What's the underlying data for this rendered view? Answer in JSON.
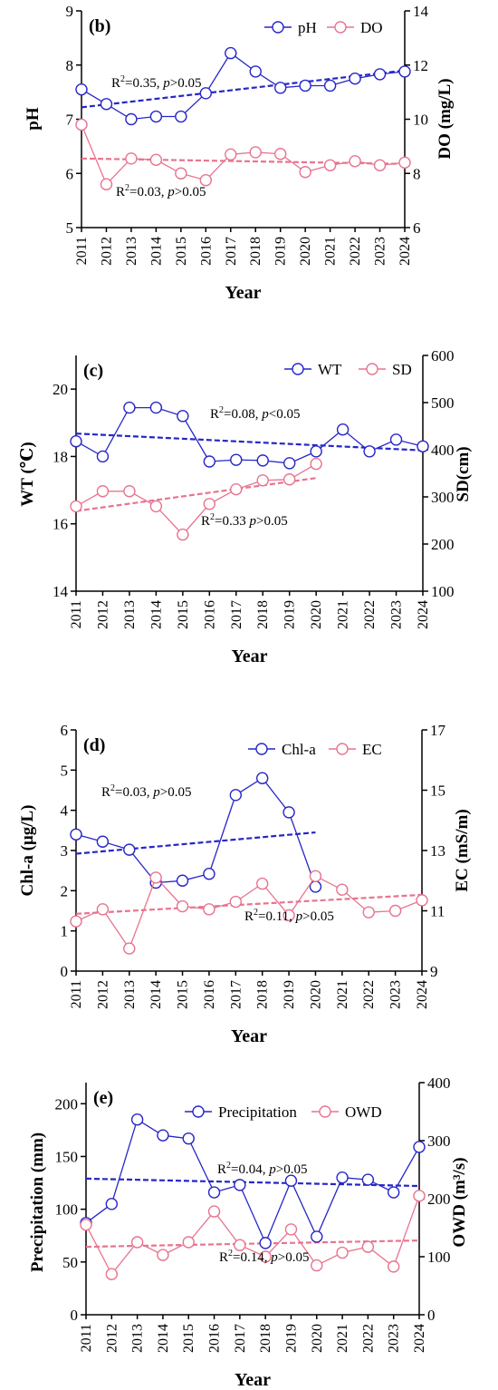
{
  "colors": {
    "blue": "#2626c8",
    "pink": "#e8748f",
    "axis": "#000000"
  },
  "chart_data": [
    {
      "type": "line",
      "panel_label": "(b)",
      "xlabel": "Year",
      "categories": [
        "2011",
        "2012",
        "2013",
        "2014",
        "2015",
        "2016",
        "2017",
        "2018",
        "2019",
        "2020",
        "2021",
        "2022",
        "2023",
        "2024"
      ],
      "ylabel_left": "pH",
      "ylabel_right": "DO (mg/L)",
      "ylim_left": [
        5,
        9
      ],
      "ylim_right": [
        6,
        14
      ],
      "yticks_left": [
        "5",
        "6",
        "7",
        "8",
        "9"
      ],
      "yticks_right": [
        "6",
        "8",
        "10",
        "12",
        "14"
      ],
      "legend_position": "top-right",
      "series": [
        {
          "name": "pH",
          "axis": "left",
          "color": "#2626c8",
          "values": [
            7.55,
            7.28,
            7.0,
            7.05,
            7.05,
            7.48,
            8.22,
            7.88,
            7.58,
            7.62,
            7.62,
            7.75,
            7.83,
            7.88
          ]
        },
        {
          "name": "DO",
          "axis": "right",
          "color": "#e8748f",
          "values": [
            9.8,
            7.6,
            8.55,
            8.5,
            8.0,
            7.75,
            8.7,
            8.78,
            8.72,
            8.05,
            8.3,
            8.45,
            8.3,
            8.4
          ]
        }
      ],
      "trends": [
        {
          "axis": "left",
          "color": "#2626c8",
          "from": [
            2011,
            7.22
          ],
          "to": [
            2024,
            7.9
          ]
        },
        {
          "axis": "right",
          "color": "#e8748f",
          "from": [
            2011,
            8.55
          ],
          "to": [
            2024,
            8.35
          ]
        }
      ],
      "annotations": [
        {
          "r2": "0.35, ",
          "p": "p",
          "rest": ">0.05"
        },
        {
          "r2": "0.03, ",
          "p": "p",
          "rest": ">0.05"
        }
      ]
    },
    {
      "type": "line",
      "panel_label": "(c)",
      "xlabel": "Year",
      "categories": [
        "2011",
        "2012",
        "2013",
        "2014",
        "2015",
        "2016",
        "2017",
        "2018",
        "2019",
        "2020",
        "2021",
        "2022",
        "2023",
        "2024"
      ],
      "ylabel_left": "WT (℃)",
      "ylabel_right": "SD(cm)",
      "ylim_left": [
        14,
        21
      ],
      "ylim_right": [
        100,
        600
      ],
      "yticks_left": [
        "14",
        "16",
        "18",
        "20"
      ],
      "yticks_right": [
        "100",
        "200",
        "300",
        "400",
        "500",
        "600"
      ],
      "legend_position": "top-right",
      "series": [
        {
          "name": "WT",
          "axis": "left",
          "color": "#2626c8",
          "values": [
            18.45,
            18.0,
            19.45,
            19.45,
            19.2,
            17.85,
            17.9,
            17.88,
            17.8,
            18.15,
            18.8,
            18.15,
            18.5,
            18.3
          ]
        },
        {
          "name": "SD",
          "axis": "right",
          "color": "#e8748f",
          "values": [
            280,
            312,
            312,
            280,
            220,
            285,
            316,
            335,
            337,
            370,
            null,
            null,
            null,
            null
          ]
        }
      ],
      "trends": [
        {
          "axis": "left",
          "color": "#2626c8",
          "from": [
            2011,
            18.68
          ],
          "to": [
            2024,
            18.18
          ]
        },
        {
          "axis": "right",
          "color": "#e8748f",
          "from": [
            2011,
            270
          ],
          "to": [
            2020,
            340
          ]
        }
      ],
      "annotations": [
        {
          "r2": "0.08, ",
          "p": "p",
          "rest": "<0.05"
        },
        {
          "r2": "0.33 ",
          "p": "p",
          "rest": ">0.05"
        }
      ]
    },
    {
      "type": "line",
      "panel_label": "(d)",
      "xlabel": "Year",
      "categories": [
        "2011",
        "2012",
        "2013",
        "2014",
        "2015",
        "2016",
        "2017",
        "2018",
        "2019",
        "2020",
        "2021",
        "2022",
        "2023",
        "2024"
      ],
      "ylabel_left": "Chl-a (μg/L)",
      "ylabel_right": "EC (mS/m)",
      "ylim_left": [
        0,
        6
      ],
      "ylim_right": [
        9,
        17
      ],
      "yticks_left": [
        "0",
        "1",
        "2",
        "3",
        "4",
        "5",
        "6"
      ],
      "yticks_right": [
        "9",
        "11",
        "13",
        "15",
        "17"
      ],
      "legend_position": "top-right",
      "series": [
        {
          "name": "Chl-a",
          "axis": "left",
          "color": "#2626c8",
          "values": [
            3.4,
            3.22,
            3.02,
            2.2,
            2.25,
            2.42,
            4.38,
            4.8,
            3.95,
            2.1,
            null,
            null,
            null,
            null
          ]
        },
        {
          "name": "EC",
          "axis": "right",
          "color": "#e8748f",
          "values": [
            10.65,
            11.05,
            9.75,
            12.1,
            11.15,
            11.05,
            11.3,
            11.9,
            10.85,
            12.15,
            11.7,
            10.95,
            11.0,
            11.35
          ]
        }
      ],
      "trends": [
        {
          "axis": "left",
          "color": "#2626c8",
          "from": [
            2011,
            2.92
          ],
          "to": [
            2020,
            3.45
          ]
        },
        {
          "axis": "right",
          "color": "#e8748f",
          "from": [
            2011,
            10.9
          ],
          "to": [
            2024,
            11.53
          ]
        }
      ],
      "annotations": [
        {
          "r2": "0.03, ",
          "p": "p",
          "rest": ">0.05"
        },
        {
          "r2": "0.11, ",
          "p": "p",
          "rest": ">0.05"
        }
      ]
    },
    {
      "type": "line",
      "panel_label": "(e)",
      "xlabel": "Year",
      "categories": [
        "2011",
        "2012",
        "2013",
        "2014",
        "2015",
        "2016",
        "2017",
        "2018",
        "2019",
        "2020",
        "2021",
        "2022",
        "2023",
        "2024"
      ],
      "ylabel_left": "Precipitation (mm)",
      "ylabel_right": "OWD (m³/s)",
      "ylim_left": [
        0,
        220
      ],
      "ylim_right": [
        0,
        400
      ],
      "yticks_left": [
        "0",
        "50",
        "100",
        "150",
        "200"
      ],
      "yticks_right": [
        "0",
        "100",
        "200",
        "300",
        "400"
      ],
      "legend_position": "top",
      "series": [
        {
          "name": "Precipitation",
          "axis": "left",
          "color": "#2626c8",
          "values": [
            87,
            105,
            185,
            170,
            167,
            116,
            123,
            68,
            127,
            74,
            130,
            128,
            116,
            159
          ]
        },
        {
          "name": "OWD",
          "axis": "right",
          "color": "#e8748f",
          "values": [
            155,
            70,
            125,
            103,
            125,
            178,
            120,
            100,
            147,
            85,
            107,
            117,
            83,
            205
          ]
        }
      ],
      "trends": [
        {
          "axis": "left",
          "color": "#2626c8",
          "from": [
            2011,
            129
          ],
          "to": [
            2024,
            122
          ]
        },
        {
          "axis": "right",
          "color": "#e8748f",
          "from": [
            2011,
            117
          ],
          "to": [
            2024,
            128
          ]
        }
      ],
      "annotations": [
        {
          "r2": "0.04, ",
          "p": "p",
          "rest": ">0.05"
        },
        {
          "r2": "0.14, ",
          "p": "p",
          "rest": ">0.05"
        }
      ]
    }
  ]
}
